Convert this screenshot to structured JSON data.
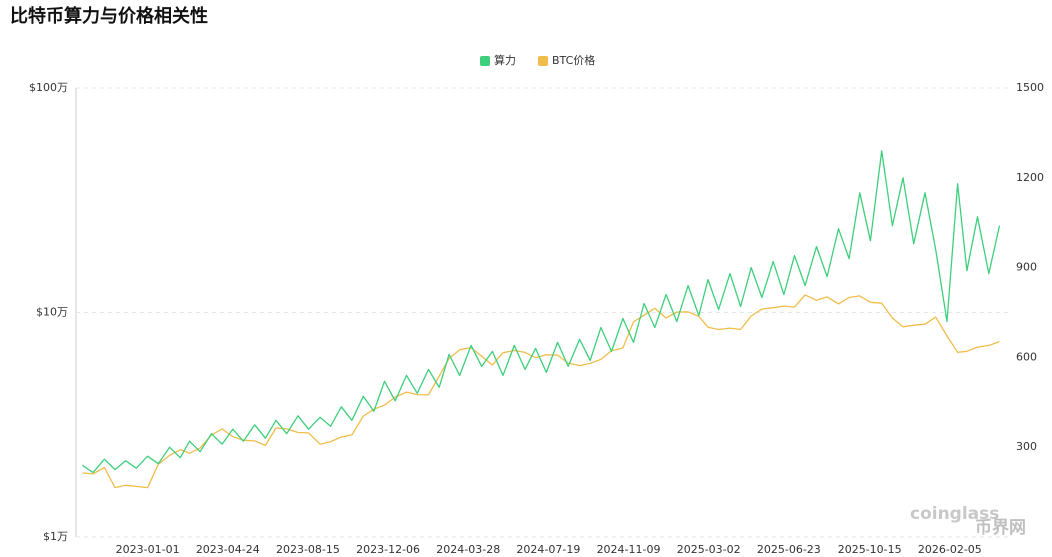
{
  "chart_data": {
    "type": "line",
    "title": "比特币算力与价格相关性",
    "x": [
      "2022-10-01",
      "2022-10-16",
      "2022-11-01",
      "2022-11-16",
      "2022-12-01",
      "2022-12-16",
      "2023-01-01",
      "2023-01-16",
      "2023-02-01",
      "2023-02-16",
      "2023-03-01",
      "2023-03-16",
      "2023-04-01",
      "2023-04-16",
      "2023-05-01",
      "2023-05-16",
      "2023-06-01",
      "2023-06-16",
      "2023-07-01",
      "2023-07-16",
      "2023-08-01",
      "2023-08-16",
      "2023-09-01",
      "2023-09-16",
      "2023-10-01",
      "2023-10-16",
      "2023-11-01",
      "2023-11-16",
      "2023-12-01",
      "2023-12-16",
      "2024-01-01",
      "2024-01-16",
      "2024-02-01",
      "2024-02-16",
      "2024-03-01",
      "2024-03-16",
      "2024-04-01",
      "2024-04-16",
      "2024-05-01",
      "2024-05-16",
      "2024-06-01",
      "2024-06-16",
      "2024-07-01",
      "2024-07-16",
      "2024-08-01",
      "2024-08-16",
      "2024-09-01",
      "2024-09-16",
      "2024-10-01",
      "2024-10-16",
      "2024-11-01",
      "2024-11-16",
      "2024-12-01",
      "2024-12-16",
      "2025-01-01",
      "2025-01-16",
      "2025-02-01",
      "2025-02-16",
      "2025-03-01",
      "2025-03-16",
      "2025-04-01",
      "2025-04-16",
      "2025-05-01",
      "2025-05-16",
      "2025-06-01",
      "2025-06-16",
      "2025-07-01",
      "2025-07-16",
      "2025-08-01",
      "2025-08-16",
      "2025-09-01",
      "2025-09-16",
      "2025-10-01",
      "2025-10-16",
      "2025-11-01",
      "2025-11-16",
      "2025-12-01",
      "2025-12-16",
      "2026-01-01",
      "2026-01-16",
      "2026-02-01",
      "2026-02-16",
      "2026-03-01",
      "2026-03-16",
      "2026-04-01",
      "2026-04-16"
    ],
    "series": [
      {
        "name": "算力",
        "color": "#3ecf7c",
        "axis": "y2",
        "values": [
          240,
          215,
          260,
          225,
          255,
          230,
          270,
          245,
          300,
          265,
          320,
          285,
          345,
          310,
          360,
          320,
          375,
          330,
          390,
          345,
          405,
          360,
          400,
          370,
          435,
          390,
          470,
          420,
          520,
          455,
          540,
          480,
          560,
          500,
          610,
          540,
          640,
          570,
          620,
          540,
          640,
          560,
          630,
          550,
          650,
          570,
          660,
          590,
          700,
          620,
          730,
          650,
          780,
          700,
          810,
          720,
          840,
          740,
          860,
          760,
          880,
          770,
          900,
          800,
          920,
          810,
          940,
          840,
          970,
          870,
          1030,
          930,
          1150,
          990,
          1290,
          1040,
          1200,
          980,
          1150,
          960,
          720,
          1180,
          890,
          1070,
          880,
          1040
        ]
      },
      {
        "name": "BTC价格",
        "color": "#f0bd4a",
        "values": [
          19300,
          19100,
          20400,
          16600,
          17000,
          16800,
          16600,
          21100,
          23100,
          24500,
          23600,
          24900,
          28500,
          30300,
          28000,
          27000,
          26800,
          25600,
          30600,
          30300,
          29200,
          29100,
          25900,
          26600,
          27900,
          28500,
          34600,
          37100,
          38700,
          42000,
          44200,
          43100,
          43000,
          52100,
          62400,
          68300,
          69700,
          63800,
          58300,
          66200,
          67700,
          66400,
          62900,
          64800,
          64600,
          59500,
          58000,
          59300,
          61800,
          67600,
          69500,
          90900,
          97200,
          104400,
          94400,
          100500,
          100600,
          96200,
          86000,
          84000,
          85200,
          84000,
          96500,
          103500,
          105000,
          106800,
          105700,
          119800,
          113300,
          117400,
          109200,
          116800,
          118600,
          111000,
          110000,
          94500,
          86300,
          87800,
          88700,
          95400,
          78600,
          66500,
          67200,
          70100,
          71300,
          74200
        ]
      }
    ],
    "xlim": [
      "2022-09-22",
      "2026-04-28"
    ],
    "xticks": [
      "2023-01-01",
      "2023-04-24",
      "2023-08-15",
      "2023-12-06",
      "2024-03-28",
      "2024-07-19",
      "2024-11-09",
      "2025-03-02",
      "2025-06-23",
      "2025-10-15",
      "2026-02-05"
    ],
    "ylim": [
      10000,
      1000000
    ],
    "log_scale_y": true,
    "yticks": [
      {
        "value": 10000,
        "label": "$1万"
      },
      {
        "value": 100000,
        "label": "$10万"
      },
      {
        "value": 1000000,
        "label": "$100万"
      }
    ],
    "y2lim": [
      0,
      1500
    ],
    "y2ticks": [
      300,
      600,
      900,
      1200,
      1500
    ],
    "grid": true,
    "watermarks": [
      "coinglass",
      "币界网"
    ]
  }
}
